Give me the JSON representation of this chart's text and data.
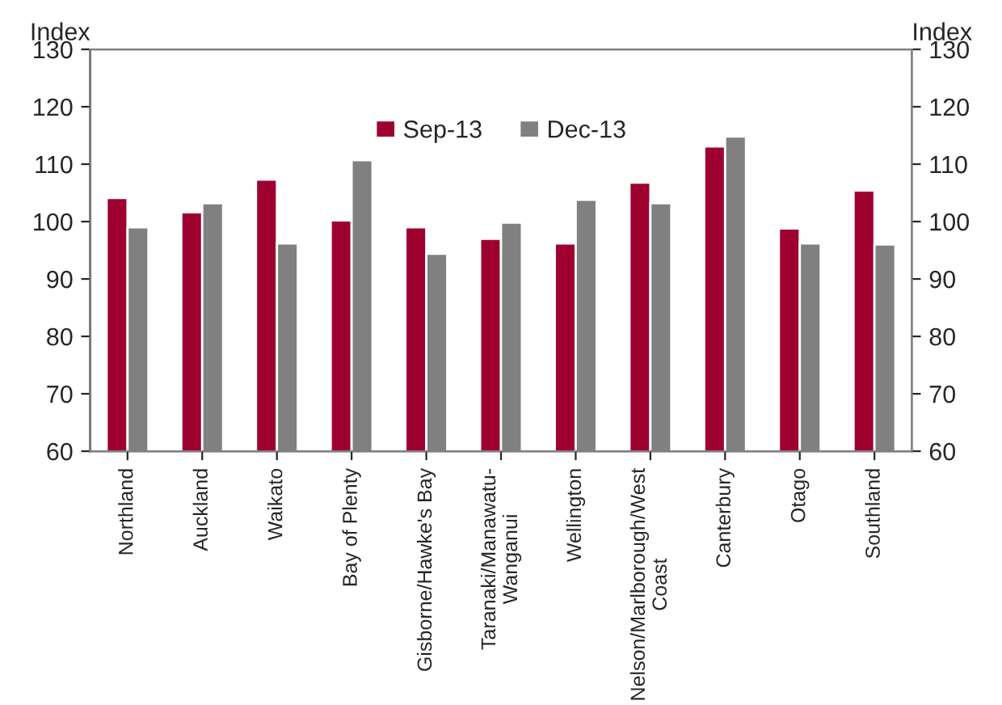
{
  "chart_data": {
    "type": "bar",
    "ylabel": "Index",
    "y2label": "Index",
    "categories": [
      "Northland",
      "Auckland",
      "Waikato",
      "Bay of Plenty",
      "Gisborne/Hawke's Bay",
      "Taranaki/Manawatu-\nWanganui",
      "Wellington",
      "Nelson/Marlborough/West\nCoast",
      "Canterbury",
      "Otago",
      "Southland"
    ],
    "series": [
      {
        "name": "Sep-13",
        "color": "#9e0030",
        "values": [
          104.1,
          101.6,
          107.3,
          100.2,
          99.0,
          97.0,
          96.2,
          106.8,
          113.1,
          98.8,
          105.4
        ]
      },
      {
        "name": "Dec-13",
        "color": "#808080",
        "values": [
          99.0,
          103.2,
          96.2,
          110.7,
          94.4,
          99.8,
          103.8,
          103.2,
          114.8,
          96.2,
          96.0
        ]
      }
    ],
    "ylim": [
      60,
      130
    ],
    "yticks": [
      60,
      70,
      80,
      90,
      100,
      110,
      120,
      130
    ],
    "y2lim": [
      60,
      130
    ],
    "y2ticks": [
      60,
      70,
      80,
      90,
      100,
      110,
      120,
      130
    ],
    "legend": "top",
    "grid": false
  }
}
